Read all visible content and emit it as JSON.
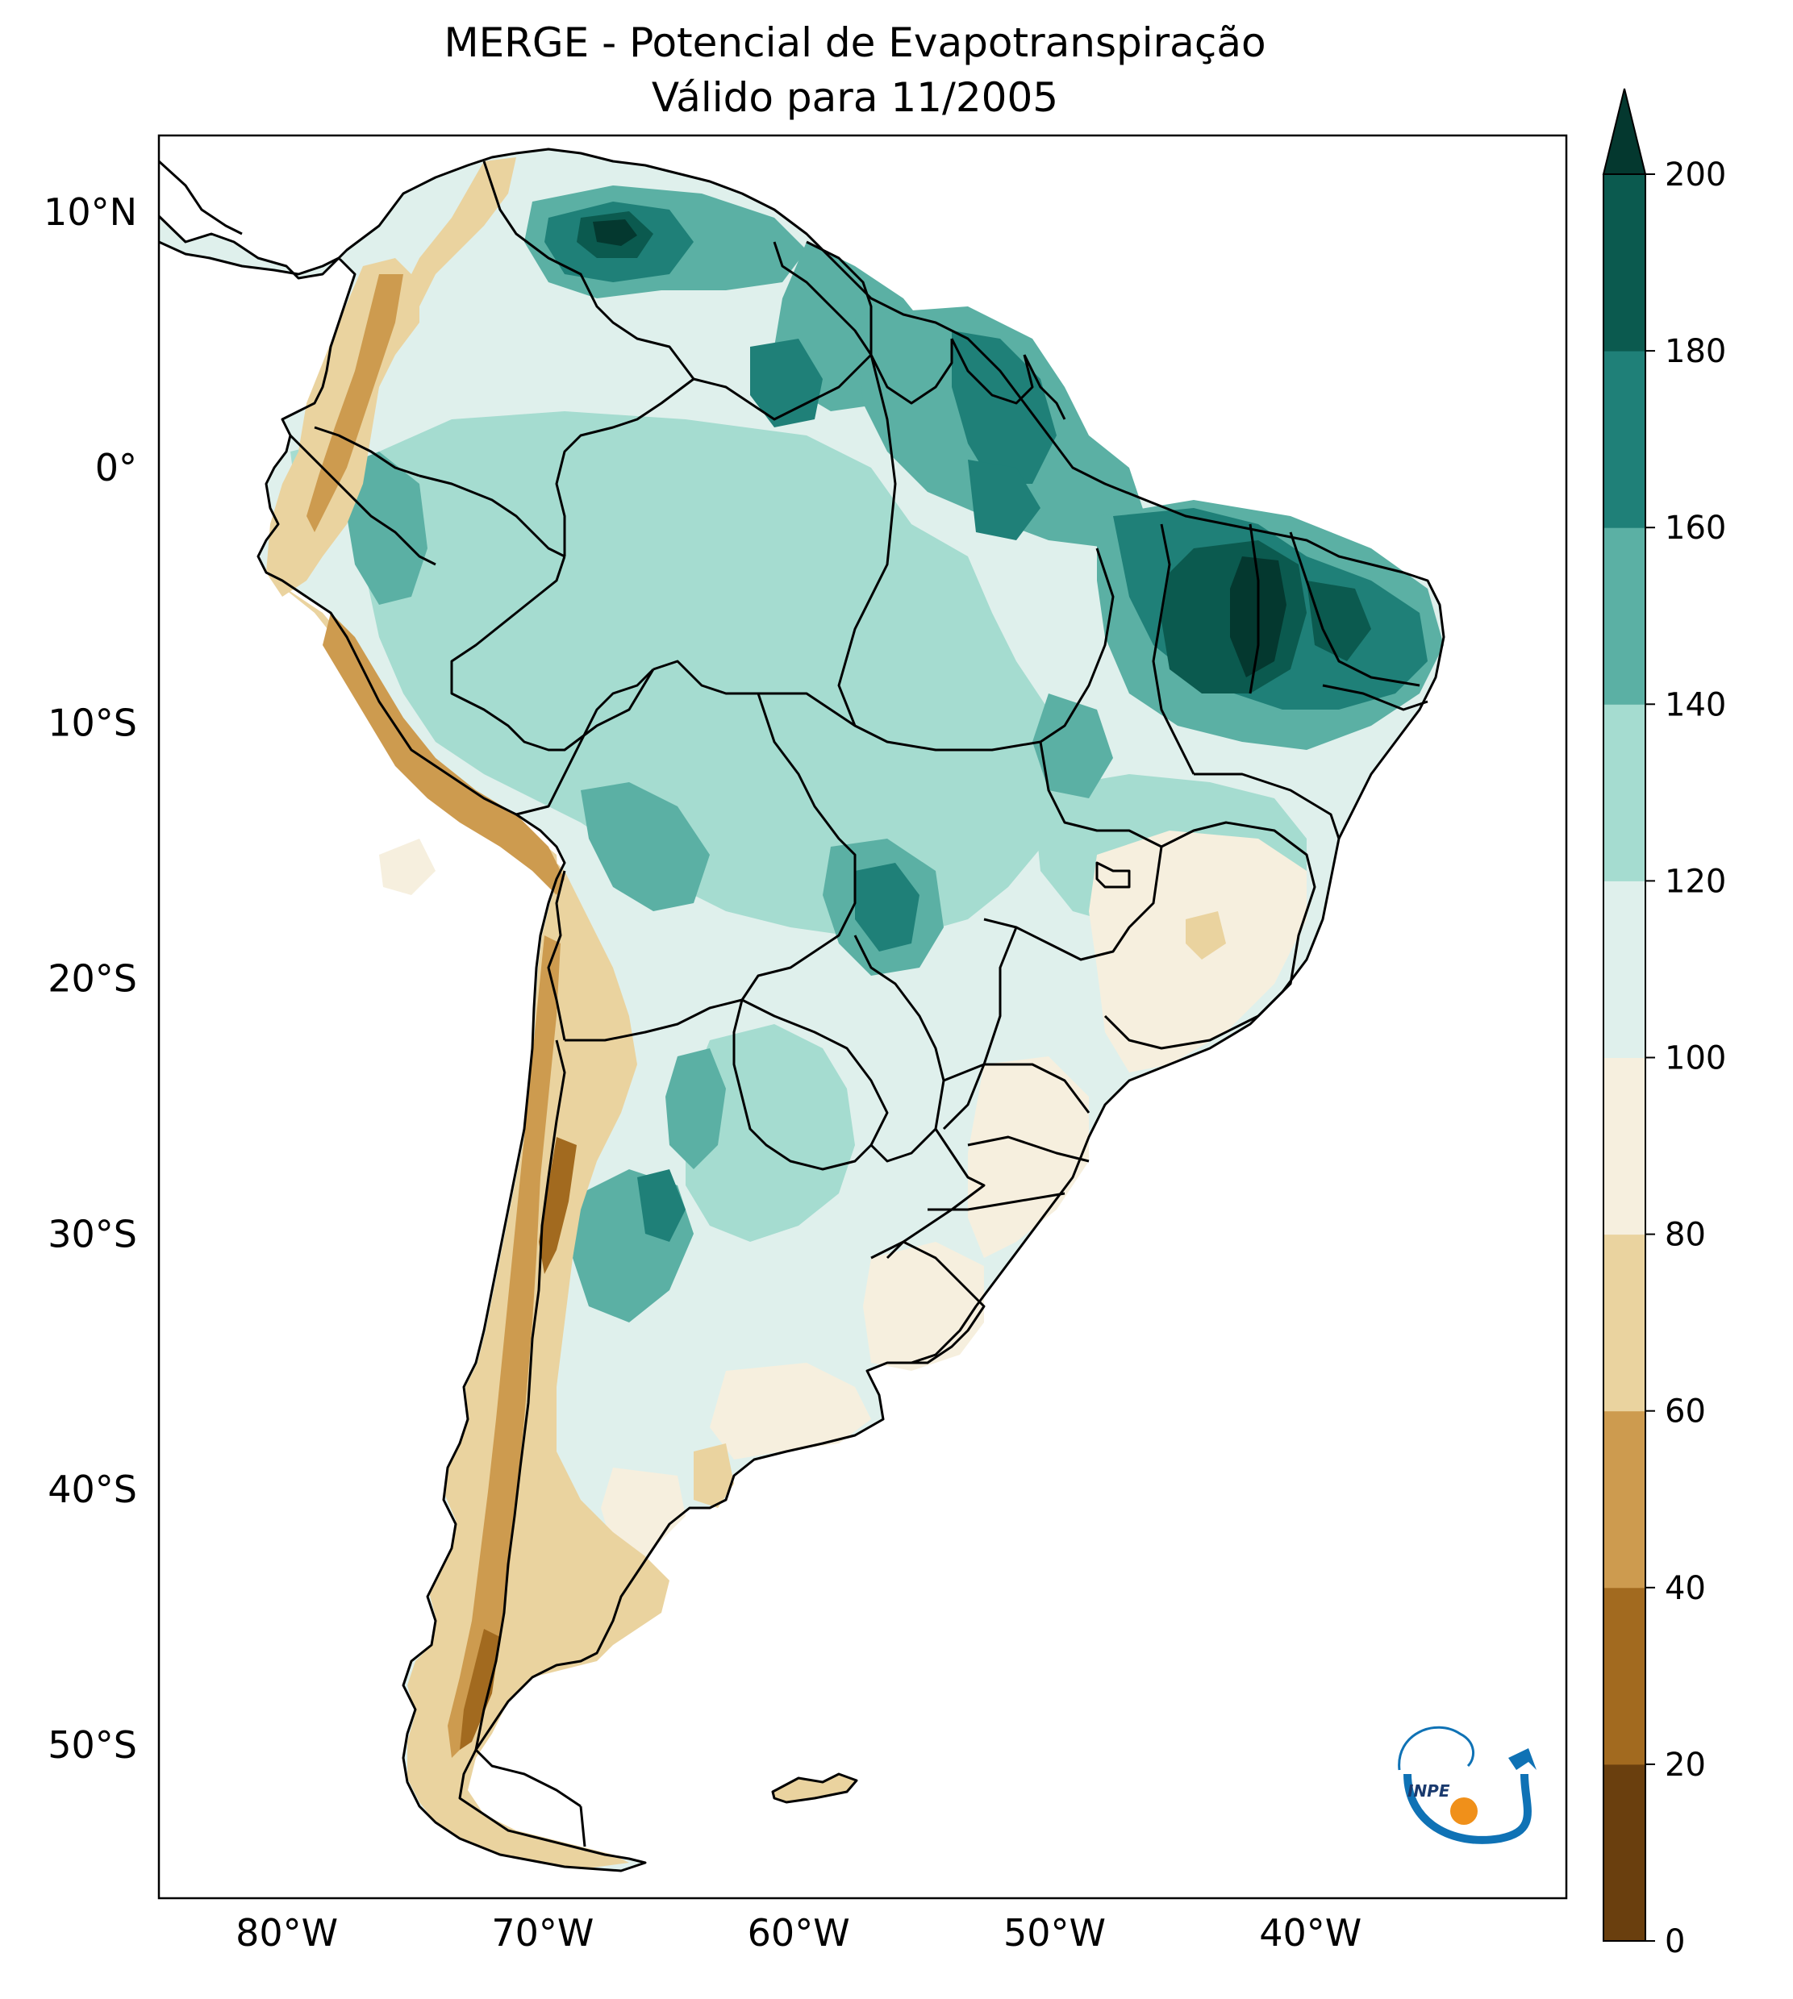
{
  "title": {
    "line1": "MERGE - Potencial de Evapotranspiração",
    "line2": "Válido para 11/2005"
  },
  "map": {
    "lon_range": [
      -85,
      -30
    ],
    "lat_range": [
      -56,
      13
    ],
    "lat_ticks": [
      {
        "lat": 10,
        "label": "10°N"
      },
      {
        "lat": 0,
        "label": "0°"
      },
      {
        "lat": -10,
        "label": "10°S"
      },
      {
        "lat": -20,
        "label": "20°S"
      },
      {
        "lat": -30,
        "label": "30°S"
      },
      {
        "lat": -40,
        "label": "40°S"
      },
      {
        "lat": -50,
        "label": "50°S"
      }
    ],
    "lon_ticks": [
      {
        "lon": -80,
        "label": "80°W"
      },
      {
        "lon": -70,
        "label": "70°W"
      },
      {
        "lon": -60,
        "label": "60°W"
      },
      {
        "lon": -50,
        "label": "50°W"
      },
      {
        "lon": -40,
        "label": "40°W"
      }
    ]
  },
  "colorbar": {
    "levels": [
      {
        "label": "0"
      },
      {
        "label": "20"
      },
      {
        "label": "40"
      },
      {
        "label": "60"
      },
      {
        "label": "80"
      },
      {
        "label": "100"
      },
      {
        "label": "120"
      },
      {
        "label": "140"
      },
      {
        "label": "160"
      },
      {
        "label": "180"
      },
      {
        "label": "200"
      }
    ],
    "colors": [
      "#6a3f0e",
      "#a26a1f",
      "#cd9b4f",
      "#ead39f",
      "#f6efde",
      "#dff0ec",
      "#a5dcd0",
      "#5bb0a4",
      "#1f8078",
      "#0b5a4f"
    ],
    "extend_color": "#04382f"
  },
  "fill_colors": {
    "c60_80": "#ead39f",
    "c80_100": "#f6efde",
    "c100_120": "#dff0ec",
    "c120_140": "#a5dcd0",
    "c140_160": "#5bb0a4",
    "c160_180": "#1f8078",
    "c180_200": "#0b5a4f",
    "c200p": "#04382f",
    "c40_60": "#cd9b4f",
    "c20_40": "#a26a1f"
  },
  "logo": {
    "text": "INPE",
    "blue": "#0f72b5",
    "orange": "#f0901a"
  }
}
